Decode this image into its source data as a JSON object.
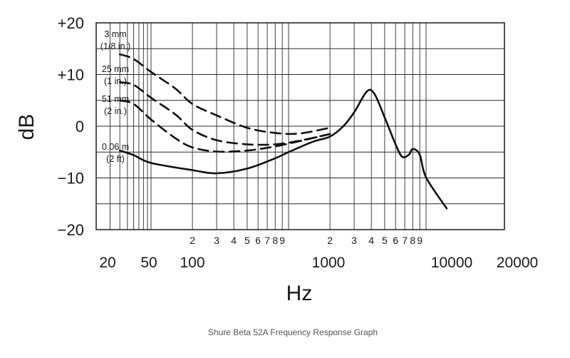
{
  "chart_data": {
    "type": "line",
    "caption": "Shure Beta 52A Frequency Response Graph",
    "xlabel": "Hz",
    "ylabel": "dB",
    "xscale": "log",
    "xlim": [
      20,
      20000
    ],
    "ylim": [
      -20,
      20
    ],
    "grid": true,
    "x_major_ticks": [
      "20",
      "50",
      "100",
      "1000",
      "10000",
      "20000"
    ],
    "x_minor_ticks": [
      "2",
      "3",
      "4",
      "5",
      "6",
      "7",
      "8",
      "9",
      "2",
      "3",
      "4",
      "5",
      "6",
      "7",
      "8",
      "9"
    ],
    "y_ticks": [
      "+20",
      "+10",
      "0",
      "−10",
      "−20"
    ],
    "series": [
      {
        "label": "3 mm (1/8 in.)",
        "label_lines": [
          "3 mm",
          "(1/8 in.)"
        ],
        "style": "dashed",
        "x": [
          40,
          60,
          100,
          150,
          200,
          300,
          500,
          800,
          1200,
          2000
        ],
        "y": [
          13.9,
          13,
          10.5,
          7.3,
          4.3,
          2.1,
          -0.3,
          -1.3,
          -1.4,
          -0.3
        ]
      },
      {
        "label": "25 mm (1 in.)",
        "label_lines": [
          "25 mm",
          "(1 in.)"
        ],
        "style": "dashed",
        "x": [
          40,
          60,
          100,
          150,
          200,
          300,
          500,
          800,
          1200,
          2000
        ],
        "y": [
          8.5,
          8,
          5.5,
          2.3,
          -0.7,
          -2.7,
          -3.5,
          -3.5,
          -2.8,
          -1.5
        ]
      },
      {
        "label": "51 mm (2 in.)",
        "label_lines": [
          "51 mm",
          "(2 in.)"
        ],
        "style": "dashed",
        "x": [
          40,
          60,
          100,
          150,
          200,
          300,
          500,
          800,
          1200,
          2000
        ],
        "y": [
          5,
          4.3,
          1.3,
          -2.3,
          -4.1,
          -4.9,
          -4.7,
          -3.9,
          -2.9,
          -1.5
        ]
      },
      {
        "label": "0.06 m (2 ft)",
        "label_lines": [
          "0.06 m",
          "(2 ft)"
        ],
        "style": "solid",
        "x": [
          40,
          60,
          100,
          200,
          300,
          500,
          800,
          1000,
          1500,
          2000,
          2500,
          3000,
          3700,
          4200,
          5000,
          6000,
          6700,
          7500,
          8000,
          9000,
          10000,
          12000
        ],
        "y": [
          -4.7,
          -5.6,
          -7.1,
          -8.5,
          -9.1,
          -8.2,
          -6.2,
          -5,
          -3,
          -2,
          0,
          2.7,
          6.7,
          6.3,
          1.7,
          -3.5,
          -5.9,
          -5.5,
          -4.4,
          -5.5,
          -9.9,
          -15.9
        ]
      }
    ]
  }
}
